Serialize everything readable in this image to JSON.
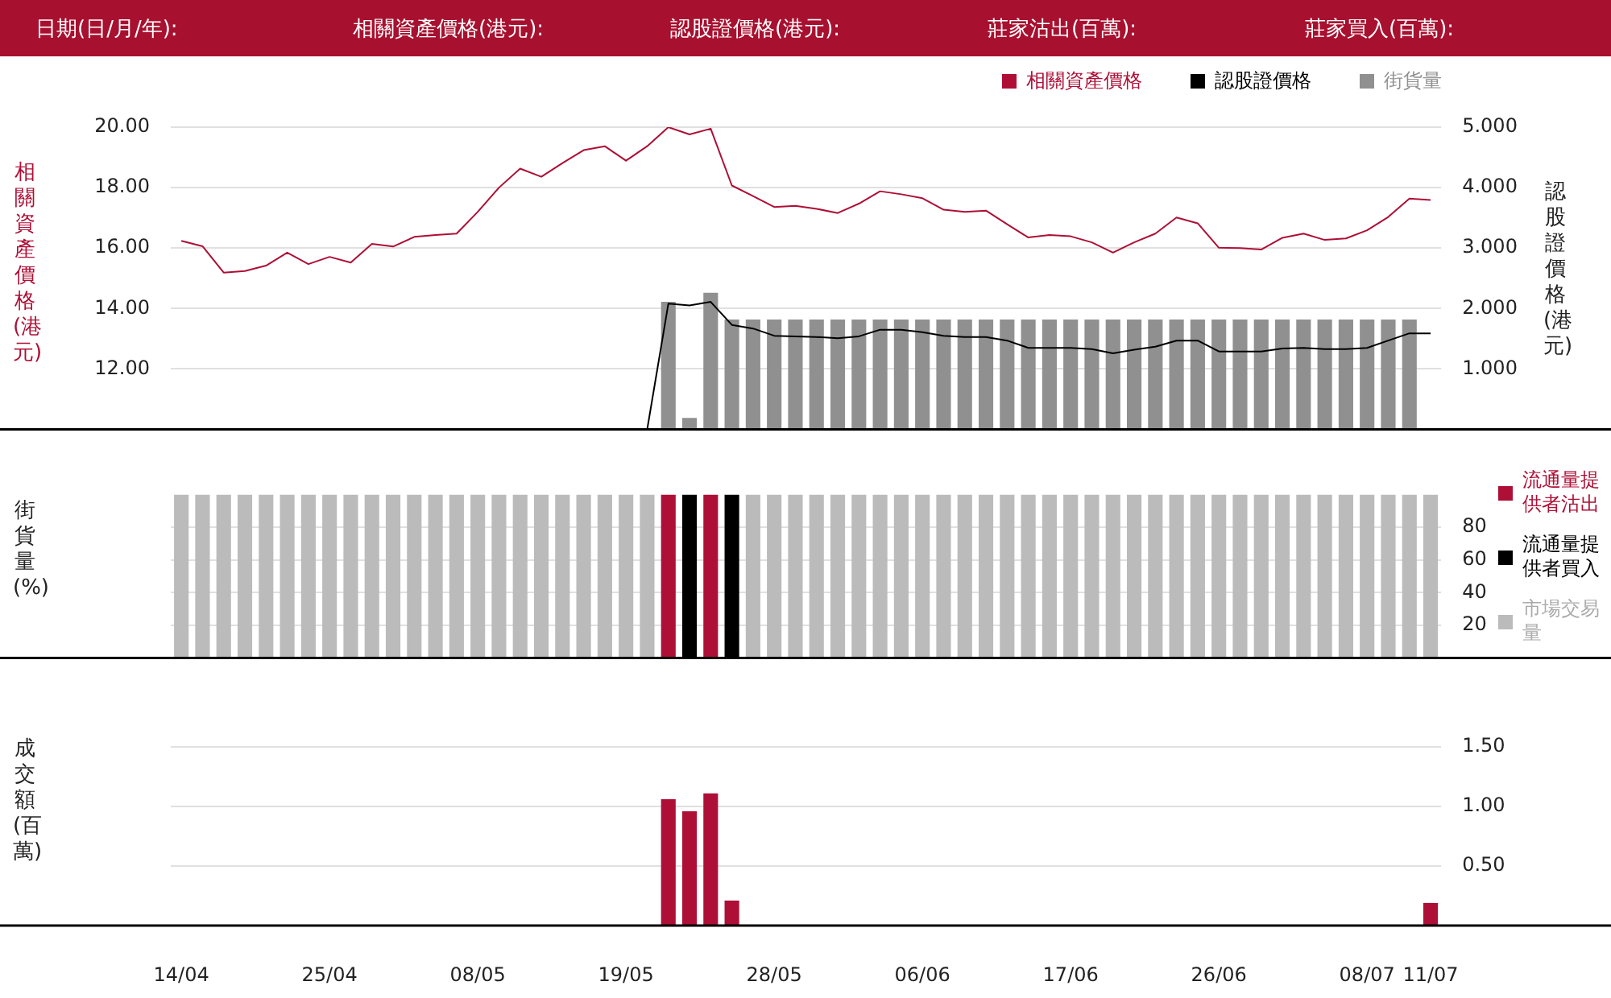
{
  "chart_data": [
    {
      "type": "line",
      "annotations": [
        "日期(日/月/年):",
        "相關資產價格(港元):",
        "認股證價格(港元):",
        "莊家沽出(百萬):",
        "莊家買入(百萬):"
      ],
      "ylabel": "相關資產價格(港元)",
      "y2label": "認股證價格(港元)",
      "categories": [
        null,
        null,
        null,
        null,
        null,
        null,
        null,
        null,
        null,
        null,
        null,
        null,
        null,
        null,
        null,
        null,
        null,
        null,
        null,
        null,
        null,
        null,
        null,
        null,
        null,
        null,
        null,
        null,
        null,
        null,
        null,
        null,
        null,
        null,
        null,
        null,
        null,
        null,
        null,
        null,
        null,
        null,
        null,
        null,
        null,
        null,
        null,
        null,
        null,
        null,
        null,
        null,
        null,
        null,
        null,
        null,
        null,
        null,
        null,
        null
      ],
      "series": [
        {
          "name": "相關資產價格",
          "color": "#ae0f36",
          "values": [
            16.24,
            16.06,
            15.19,
            15.24,
            15.42,
            15.85,
            15.47,
            15.71,
            15.52,
            16.14,
            16.05,
            16.37,
            16.43,
            16.48,
            17.2,
            18.0,
            18.63,
            18.36,
            18.81,
            19.24,
            19.37,
            18.89,
            19.37,
            20.0,
            19.76,
            19.95,
            18.07,
            17.72,
            17.36,
            17.4,
            17.3,
            17.16,
            17.47,
            17.88,
            17.78,
            17.65,
            17.27,
            17.2,
            17.24,
            16.79,
            16.35,
            16.43,
            16.39,
            16.19,
            15.85,
            16.19,
            16.48,
            17.01,
            16.82,
            16.01,
            16.0,
            15.95,
            16.34,
            16.48,
            16.27,
            16.32,
            16.59,
            17.03,
            17.64,
            17.59
          ]
        },
        {
          "name": "認股證價格",
          "color": "#000000",
          "axis": "y2",
          "values": [
            null,
            null,
            null,
            null,
            null,
            null,
            null,
            null,
            null,
            null,
            null,
            null,
            null,
            null,
            null,
            null,
            null,
            null,
            null,
            null,
            null,
            null,
            0,
            2.08,
            2.05,
            2.11,
            1.73,
            1.67,
            1.55,
            1.54,
            1.53,
            1.51,
            1.54,
            1.65,
            1.65,
            1.61,
            1.55,
            1.53,
            1.53,
            1.47,
            1.35,
            1.35,
            1.35,
            1.33,
            1.26,
            1.32,
            1.37,
            1.47,
            1.47,
            1.29,
            1.29,
            1.29,
            1.34,
            1.35,
            1.33,
            1.33,
            1.35,
            1.47,
            1.59,
            1.59
          ]
        },
        {
          "name": "街貨量",
          "color": "#909090",
          "type": "bar",
          "axis": "y2",
          "values": [
            null,
            null,
            null,
            null,
            null,
            null,
            null,
            null,
            null,
            null,
            null,
            null,
            null,
            null,
            null,
            null,
            null,
            null,
            null,
            null,
            null,
            null,
            null,
            2.11,
            0.19,
            2.26,
            1.82,
            1.82,
            1.82,
            1.82,
            1.82,
            1.82,
            1.82,
            1.82,
            1.82,
            1.82,
            1.82,
            1.82,
            1.82,
            1.82,
            1.82,
            1.82,
            1.82,
            1.82,
            1.82,
            1.82,
            1.82,
            1.82,
            1.82,
            1.82,
            1.82,
            1.82,
            1.82,
            1.82,
            1.82,
            1.82,
            1.82,
            1.82,
            1.82,
            null
          ]
        }
      ],
      "ylim": [
        10,
        20
      ],
      "yticks": [
        {
          "value": 12,
          "label": "12.00"
        },
        {
          "value": 14,
          "label": "14.00"
        },
        {
          "value": 16,
          "label": "16.00"
        },
        {
          "value": 18,
          "label": "18.00"
        },
        {
          "value": 20,
          "label": "20.00"
        }
      ],
      "y2lim": [
        0,
        5
      ],
      "y2ticks": [
        {
          "value": 1,
          "label": "1.000"
        },
        {
          "value": 2,
          "label": "2.000"
        },
        {
          "value": 3,
          "label": "3.000"
        },
        {
          "value": 4,
          "label": "4.000"
        },
        {
          "value": 5,
          "label": "5.000"
        }
      ],
      "grid": "y",
      "legend": "top right",
      "tick_labels": "y"
    },
    {
      "type": "bar",
      "ylabel": "街貨量(%)",
      "stacked": true,
      "categories": [
        null,
        null,
        null,
        null,
        null,
        null,
        null,
        null,
        null,
        null,
        null,
        null,
        null,
        null,
        null,
        null,
        null,
        null,
        null,
        null,
        null,
        null,
        null,
        null,
        null,
        null,
        null,
        null,
        null,
        null,
        null,
        null,
        null,
        null,
        null,
        null,
        null,
        null,
        null,
        null,
        null,
        null,
        null,
        null,
        null,
        null,
        null,
        null,
        null,
        null,
        null,
        null,
        null,
        null,
        null,
        null,
        null,
        null,
        null,
        null
      ],
      "series": [
        {
          "name": "流通量提供者沽出",
          "color": "#ae0f36",
          "values": [
            0,
            0,
            0,
            0,
            0,
            0,
            0,
            0,
            0,
            0,
            0,
            0,
            0,
            0,
            0,
            0,
            0,
            0,
            0,
            0,
            0,
            0,
            0,
            100,
            0,
            100,
            0,
            0,
            0,
            0,
            0,
            0,
            0,
            0,
            0,
            0,
            0,
            0,
            0,
            0,
            0,
            0,
            0,
            0,
            0,
            0,
            0,
            0,
            0,
            0,
            0,
            0,
            0,
            0,
            0,
            0,
            0,
            0,
            0,
            0
          ]
        },
        {
          "name": "流通量提供者買入",
          "color": "#000000",
          "values": [
            0,
            0,
            0,
            0,
            0,
            0,
            0,
            0,
            0,
            0,
            0,
            0,
            0,
            0,
            0,
            0,
            0,
            0,
            0,
            0,
            0,
            0,
            0,
            0,
            100,
            0,
            100,
            0,
            0,
            0,
            0,
            0,
            0,
            0,
            0,
            0,
            0,
            0,
            0,
            0,
            0,
            0,
            0,
            0,
            0,
            0,
            0,
            0,
            0,
            0,
            0,
            0,
            0,
            0,
            0,
            0,
            0,
            0,
            0,
            0
          ]
        },
        {
          "name": "市場交易量",
          "color": "#bbbbbb",
          "values": [
            100,
            100,
            100,
            100,
            100,
            100,
            100,
            100,
            100,
            100,
            100,
            100,
            100,
            100,
            100,
            100,
            100,
            100,
            100,
            100,
            100,
            100,
            100,
            0,
            0,
            0,
            0,
            100,
            100,
            100,
            100,
            100,
            100,
            100,
            100,
            100,
            100,
            100,
            100,
            100,
            100,
            100,
            100,
            100,
            100,
            100,
            100,
            100,
            100,
            100,
            100,
            100,
            100,
            100,
            100,
            100,
            100,
            100,
            100,
            100
          ]
        }
      ],
      "ylim": [
        0,
        100
      ],
      "yticks": [
        20,
        40,
        60,
        80
      ],
      "grid": "y",
      "legend": "right",
      "tick_labels": "y"
    },
    {
      "type": "bar",
      "ylabel": "成交額(百萬)",
      "categories": [
        "14/04",
        null,
        null,
        null,
        null,
        null,
        null,
        "25/04",
        null,
        null,
        null,
        null,
        null,
        null,
        "08/05",
        null,
        null,
        null,
        null,
        null,
        null,
        "19/05",
        null,
        null,
        null,
        null,
        null,
        null,
        "28/05",
        null,
        null,
        null,
        null,
        null,
        null,
        "06/06",
        null,
        null,
        null,
        null,
        null,
        null,
        "17/06",
        null,
        null,
        null,
        null,
        null,
        null,
        "26/06",
        null,
        null,
        null,
        null,
        null,
        null,
        "08/07",
        null,
        null,
        "11/07"
      ],
      "values": [
        0,
        0,
        0,
        0,
        0,
        0,
        0,
        0,
        0,
        0,
        0,
        0,
        0,
        0,
        0,
        0,
        0,
        0,
        0,
        0,
        0,
        0,
        0,
        1.06,
        0.96,
        1.11,
        0.21,
        0,
        0,
        0,
        0,
        0,
        0,
        0,
        0,
        0,
        0,
        0,
        0,
        0,
        0,
        0,
        0,
        0,
        0,
        0,
        0,
        0,
        0,
        0,
        0,
        0,
        0,
        0,
        0,
        0,
        0,
        0,
        0,
        0.19
      ],
      "color": "#ae0f36",
      "ylim": [
        0,
        1.5
      ],
      "yticks": [
        {
          "value": 0.5,
          "label": "0.50"
        },
        {
          "value": 1,
          "label": "1.00"
        },
        {
          "value": 1.5,
          "label": "1.50"
        }
      ],
      "grid": "y"
    }
  ]
}
